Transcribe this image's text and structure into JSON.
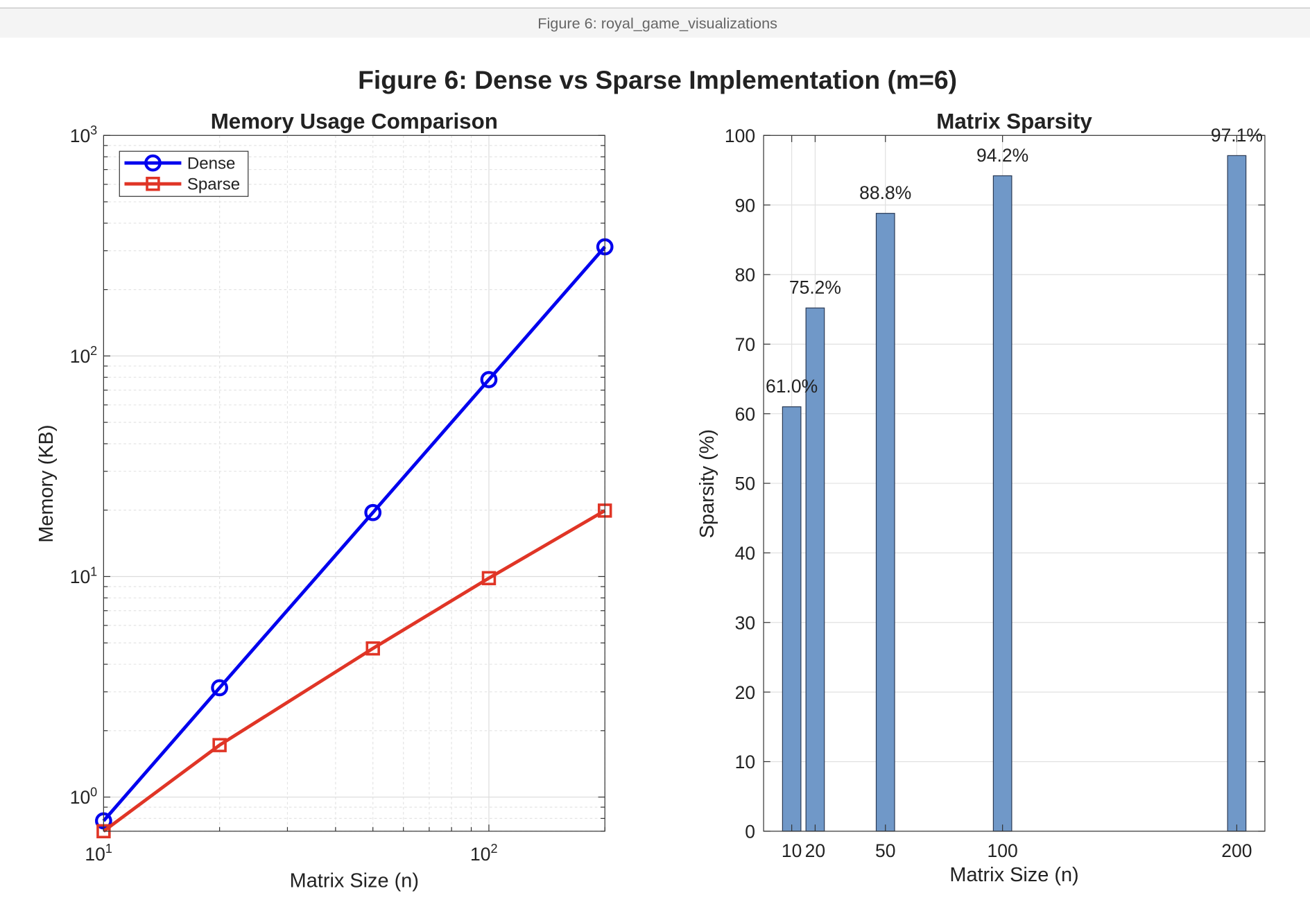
{
  "window": {
    "title": "Figure 6: royal_game_visualizations"
  },
  "figure_title": "Figure 6: Dense vs Sparse Implementation (m=6)",
  "chart_data": [
    {
      "type": "line",
      "title": "Memory Usage Comparison",
      "xlabel": "Matrix Size (n)",
      "ylabel": "Memory (KB)",
      "x_scale": "log",
      "y_scale": "log",
      "xlim": [
        10,
        200
      ],
      "ylim": [
        0.7,
        1000
      ],
      "x_ticks": [
        {
          "value": 10,
          "base": "10",
          "exp": "1"
        },
        {
          "value": 100,
          "base": "10",
          "exp": "2"
        }
      ],
      "y_ticks": [
        {
          "value": 1,
          "base": "10",
          "exp": "0"
        },
        {
          "value": 10,
          "base": "10",
          "exp": "1"
        },
        {
          "value": 100,
          "base": "10",
          "exp": "2"
        },
        {
          "value": 1000,
          "base": "10",
          "exp": "3"
        }
      ],
      "grid": true,
      "legend_placement": "top-left",
      "x": [
        10,
        20,
        50,
        100,
        200
      ],
      "series": [
        {
          "name": "Dense",
          "values": [
            0.78,
            3.13,
            19.5,
            78.1,
            312.5
          ],
          "color": "#0000ee",
          "marker": "circle"
        },
        {
          "name": "Sparse",
          "values": [
            0.69,
            1.72,
            4.72,
            9.83,
            19.9
          ],
          "color": "#e03526",
          "marker": "square"
        }
      ]
    },
    {
      "type": "bar",
      "title": "Matrix Sparsity",
      "xlabel": "Matrix Size (n)",
      "ylabel": "Sparsity (%)",
      "xlim": [
        -2,
        212
      ],
      "ylim": [
        0,
        100
      ],
      "y_ticks": [
        0,
        10,
        20,
        30,
        40,
        50,
        60,
        70,
        80,
        90,
        100
      ],
      "grid": true,
      "categories": [
        10,
        20,
        50,
        100,
        200
      ],
      "values": [
        61.0,
        75.2,
        88.8,
        94.2,
        97.1
      ],
      "data_labels": [
        "61.0%",
        "75.2%",
        "88.8%",
        "94.2%",
        "97.1%"
      ],
      "color": "#7098c8"
    }
  ]
}
